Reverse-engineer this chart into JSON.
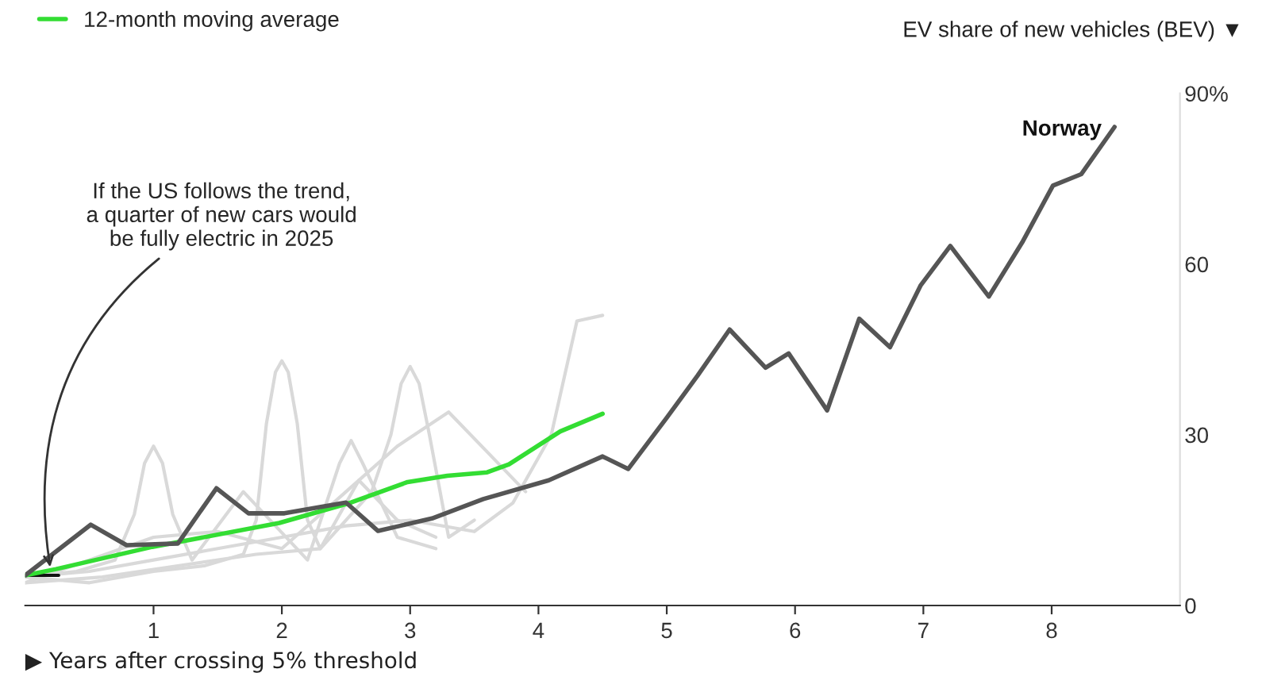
{
  "chart_data": {
    "type": "line",
    "xlabel": "▶ Years after crossing 5% threshold",
    "ylabel": "EV share of new vehicles (BEV) ▼",
    "xlim": [
      0,
      9
    ],
    "xticks": [
      1,
      2,
      3,
      4,
      5,
      6,
      7,
      8
    ],
    "ylim": [
      0,
      90
    ],
    "yticks": [
      0,
      30,
      60,
      {
        "value": 90,
        "label": "90%"
      }
    ],
    "grid": false,
    "legend": "top left",
    "annotations": [
      {
        "text": "If the US follows the trend, a quarter of new cars would be fully electric in 2025",
        "x": 0.2,
        "y": 6
      }
    ],
    "series": [
      {
        "color": "#d9d9d9",
        "x": [
          0,
          0.5,
          1.0,
          1.5,
          2.0,
          2.5,
          3.0,
          3.5,
          3.8,
          4.1,
          4.3,
          4.5
        ],
        "values": [
          5,
          6,
          8,
          10,
          12,
          14,
          15,
          13,
          18,
          30,
          50,
          51
        ]
      },
      {
        "color": "#d9d9d9",
        "x": [
          0,
          0.5,
          1.0,
          1.4,
          1.7,
          1.8,
          1.88,
          1.95,
          2.0,
          2.05,
          2.12,
          2.2,
          2.3,
          2.6,
          2.9,
          3.2
        ],
        "values": [
          5,
          4,
          6,
          7,
          9,
          15,
          32,
          41,
          43,
          41,
          32,
          15,
          10,
          22,
          15,
          12
        ]
      },
      {
        "color": "#d9d9d9",
        "x": [
          0,
          0.6,
          1.2,
          1.8,
          2.3,
          2.7,
          2.85,
          2.93,
          3.0,
          3.07,
          3.15,
          3.3,
          3.5
        ],
        "values": [
          4,
          5,
          7,
          9,
          10,
          20,
          30,
          39,
          42,
          39,
          30,
          12,
          15
        ]
      },
      {
        "color": "#d9d9d9",
        "x": [
          0,
          0.4,
          0.7,
          0.85,
          0.93,
          1.0,
          1.07,
          1.15,
          1.3,
          1.7,
          2.2,
          2.45,
          2.54,
          2.63,
          2.9,
          3.2
        ],
        "values": [
          5,
          6,
          8,
          16,
          25,
          28,
          25,
          16,
          8,
          20,
          8,
          25,
          29,
          25,
          12,
          10
        ]
      },
      {
        "color": "#d9d9d9",
        "x": [
          0,
          0.5,
          1.0,
          1.5,
          2.0,
          2.5,
          2.9,
          3.3,
          3.6,
          3.9
        ],
        "values": [
          4,
          8,
          12,
          13,
          10,
          20,
          28,
          34,
          27,
          20
        ]
      },
      {
        "color": "#111111",
        "x": [
          0,
          0.26
        ],
        "values": [
          5.3,
          5.3
        ]
      },
      {
        "name": "12-month moving average",
        "color": "#33dd33",
        "x": [
          0,
          0.24,
          0.99,
          1.98,
          2.54,
          2.98,
          3.29,
          3.6,
          3.77,
          4.17,
          4.5
        ],
        "values": [
          5.3,
          6.4,
          10.3,
          14.5,
          18.1,
          21.7,
          22.8,
          23.4,
          24.8,
          30.6,
          33.7
        ]
      },
      {
        "name": "Norway",
        "color": "#555555",
        "x": [
          0,
          0.51,
          0.79,
          1.19,
          1.49,
          1.74,
          2.02,
          2.5,
          2.75,
          3.17,
          3.57,
          4.08,
          4.5,
          4.7,
          5.0,
          5.24,
          5.49,
          5.77,
          5.95,
          6.25,
          6.5,
          6.74,
          6.98,
          7.21,
          7.51,
          7.77,
          8.01,
          8.23,
          8.49
        ],
        "values": [
          5.3,
          14.2,
          10.6,
          10.9,
          20.6,
          16.2,
          16.2,
          18.1,
          13.1,
          15.3,
          18.7,
          22,
          26.2,
          24,
          33,
          40.4,
          48.5,
          41.8,
          44.3,
          34.3,
          50.4,
          45.4,
          56.3,
          63.2,
          54.3,
          63.8,
          73.8,
          75.8,
          84.1
        ]
      }
    ]
  }
}
